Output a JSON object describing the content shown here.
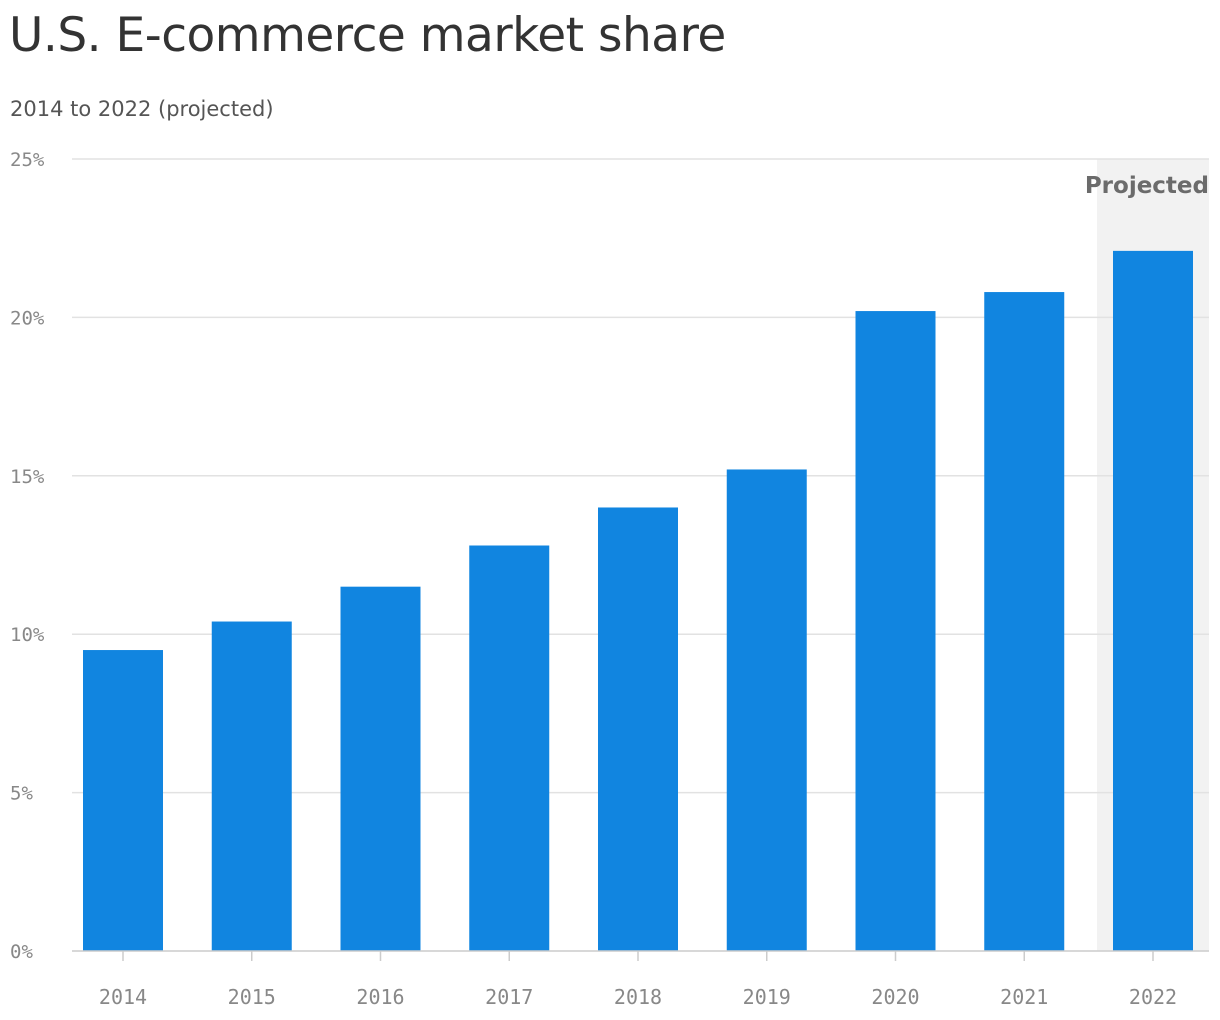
{
  "title": "U.S. E-commerce market share",
  "subtitle": "2014 to 2022 (projected)",
  "chart_data": {
    "type": "bar",
    "title": "U.S. E-commerce market share",
    "subtitle": "2014 to 2022 (projected)",
    "categories": [
      "2014",
      "2015",
      "2016",
      "2017",
      "2018",
      "2019",
      "2020",
      "2021",
      "2022"
    ],
    "values": [
      9.5,
      10.4,
      11.5,
      12.8,
      14.0,
      15.2,
      20.2,
      20.8,
      22.1
    ],
    "ylim": [
      0,
      25
    ],
    "yticks": [
      0,
      5,
      10,
      15,
      20,
      25
    ],
    "ytick_labels": [
      "0%",
      "5%",
      "10%",
      "15%",
      "20%",
      "25%"
    ],
    "xlabel": "",
    "ylabel": "",
    "grid": true,
    "legend": "none",
    "bar_color": "#1185e0",
    "highlight": {
      "label": "Projected",
      "categories": [
        "2022"
      ],
      "color": "#f2f2f2"
    }
  }
}
